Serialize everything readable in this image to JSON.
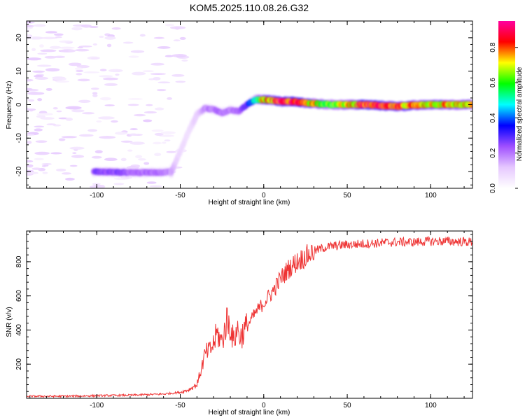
{
  "figure_title": "KOM5.2025.110.08.26.G32",
  "chart_data": [
    {
      "type": "heatmap",
      "xlabel": "Height of straight line (km)",
      "ylabel": "Frequency (Hz)",
      "xlim": [
        -142,
        125
      ],
      "ylim": [
        -25,
        25
      ],
      "xticks": [
        -100,
        -50,
        0,
        50,
        100
      ],
      "xtick_labels": [
        "-100",
        "-50",
        "0",
        "50",
        "100"
      ],
      "yticks": [
        -20,
        -10,
        0,
        10,
        20
      ],
      "ytick_labels": [
        "-20",
        "-10",
        "0",
        "10",
        "20"
      ],
      "colorbar": {
        "label": "Normalized spectral amplitude",
        "range": [
          0,
          0.95
        ],
        "ticks": [
          0,
          0.2,
          0.4,
          0.6,
          0.8
        ],
        "tick_labels": [
          "0.0",
          "0.2",
          "0.4",
          "0.6",
          "0.8"
        ],
        "colors": [
          "#ffffff",
          "#e6c8ff",
          "#a050ff",
          "#0000ff",
          "#00ffff",
          "#00ff00",
          "#ffff00",
          "#ff0000",
          "#ff00a0"
        ]
      },
      "trace": {
        "height_km": [
          -102,
          -90,
          -75,
          -60,
          -55,
          -50,
          -45,
          -40,
          -35,
          -30,
          -25,
          -20,
          -15,
          -10,
          -5,
          0,
          10,
          20,
          30,
          40,
          60,
          80,
          100,
          125
        ],
        "frequency_hz": [
          -20,
          -20.2,
          -20.3,
          -20.2,
          -20,
          -14,
          -8,
          -3,
          -1,
          -1.5,
          -2.5,
          -1.5,
          -2,
          0,
          1.5,
          1.5,
          1,
          0.8,
          0.3,
          0,
          0,
          -0.5,
          0,
          0
        ],
        "amplitude": [
          0.25,
          0.25,
          0.22,
          0.2,
          0.15,
          0.08,
          0.08,
          0.12,
          0.18,
          0.2,
          0.2,
          0.2,
          0.2,
          0.3,
          0.5,
          0.75,
          0.85,
          0.85,
          0.75,
          0.6,
          0.85,
          0.8,
          0.75,
          0.7
        ]
      },
      "grid": false
    },
    {
      "type": "line",
      "xlabel": "Height of straight line (km)",
      "ylabel": "SNR (v/v)",
      "xlim": [
        -142,
        125
      ],
      "ylim": [
        0,
        980
      ],
      "xticks": [
        -100,
        -50,
        0,
        50,
        100
      ],
      "xtick_labels": [
        "-100",
        "-50",
        "0",
        "50",
        "100"
      ],
      "yticks": [
        200,
        400,
        600,
        800
      ],
      "ytick_labels": [
        "200",
        "400",
        "600",
        "800"
      ],
      "series": [
        {
          "color": "#ee3333",
          "x": [
            -142,
            -120,
            -100,
            -80,
            -60,
            -50,
            -45,
            -40,
            -38,
            -35,
            -32,
            -30,
            -28,
            -25,
            -22,
            -20,
            -18,
            -16,
            -14,
            -10,
            -5,
            0,
            5,
            10,
            15,
            20,
            25,
            30,
            35,
            40,
            50,
            60,
            70,
            80,
            90,
            100,
            110,
            125
          ],
          "y": [
            12,
            12,
            15,
            18,
            25,
            35,
            50,
            80,
            150,
            260,
            280,
            320,
            380,
            330,
            460,
            420,
            330,
            410,
            360,
            420,
            500,
            560,
            620,
            700,
            760,
            800,
            830,
            860,
            880,
            890,
            900,
            905,
            910,
            915,
            915,
            920,
            920,
            915
          ]
        }
      ],
      "grid": false
    }
  ]
}
